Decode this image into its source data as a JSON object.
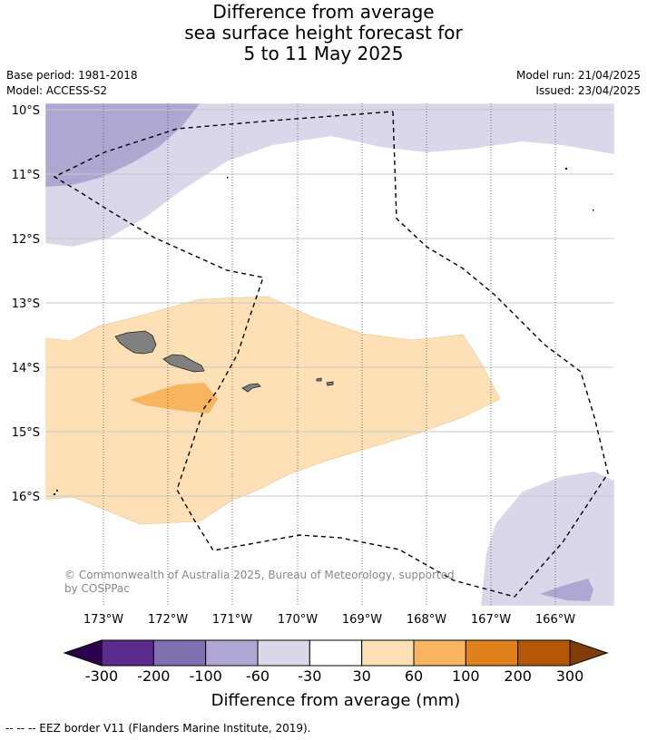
{
  "title": {
    "line1": "Difference from average",
    "line2": "sea surface height forecast for",
    "line3": "5 to 11 May 2025"
  },
  "meta": {
    "base_period": "Base period: 1981-2018",
    "model": "Model: ACCESS-S2",
    "model_run": "Model run: 21/04/2025",
    "issued": "Issued: 23/04/2025"
  },
  "map": {
    "lat_labels": [
      "10°S",
      "11°S",
      "12°S",
      "13°S",
      "14°S",
      "15°S",
      "16°S"
    ],
    "lon_labels": [
      "173°W",
      "172°W",
      "171°W",
      "170°W",
      "169°W",
      "168°W",
      "167°W",
      "166°W"
    ],
    "copyright_line1": "© Commonwealth of Australia 2025, Bureau of Meteorology, supported",
    "copyright_line2": "by COSPPac"
  },
  "colorbar": {
    "ticks": [
      "-300",
      "-200",
      "-100",
      "-60",
      "-30",
      "30",
      "60",
      "100",
      "200",
      "300"
    ],
    "colors": [
      "#5b2a8c",
      "#8170b0",
      "#b0a6d2",
      "#d8d8ea",
      "#ffffff",
      "#fee0b6",
      "#f8b45e",
      "#e0821b",
      "#b35806"
    ],
    "end_low": "#2d004b",
    "end_high": "#7f3b08",
    "title": "Difference from average (mm)"
  },
  "footer": "--  --  -- EEZ border V11 (Flanders Marine Institute, 2019)."
}
